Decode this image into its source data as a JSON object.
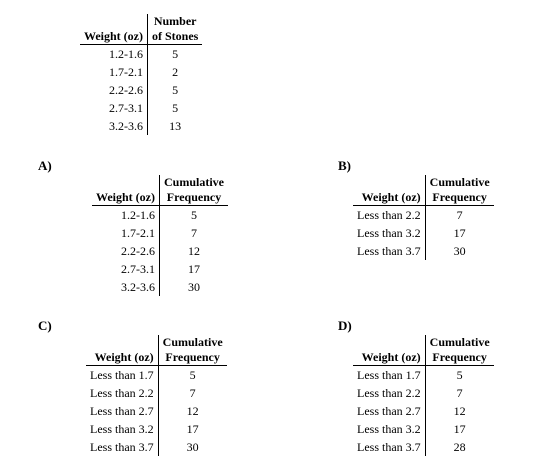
{
  "source": {
    "col1_header": "Weight (oz)",
    "col2_header_line1": "Number",
    "col2_header_line2": "of Stones",
    "rows": [
      {
        "w": "1.2-1.6",
        "v": "5"
      },
      {
        "w": "1.7-2.1",
        "v": "2"
      },
      {
        "w": "2.2-2.6",
        "v": "5"
      },
      {
        "w": "2.7-3.1",
        "v": "5"
      },
      {
        "w": "3.2-3.6",
        "v": "13"
      }
    ]
  },
  "options": [
    {
      "label": "A)",
      "col1_header": "Weight (oz)",
      "col2_header_line1": "Cumulative",
      "col2_header_line2": "Frequency",
      "rows": [
        {
          "w": "1.2-1.6",
          "v": "5"
        },
        {
          "w": "1.7-2.1",
          "v": "7"
        },
        {
          "w": "2.2-2.6",
          "v": "12"
        },
        {
          "w": "2.7-3.1",
          "v": "17"
        },
        {
          "w": "3.2-3.6",
          "v": "30"
        }
      ]
    },
    {
      "label": "B)",
      "col1_header": "Weight (oz)",
      "col2_header_line1": "Cumulative",
      "col2_header_line2": "Frequency",
      "rows": [
        {
          "w": "Less than 2.2",
          "v": "7"
        },
        {
          "w": "Less than 3.2",
          "v": "17"
        },
        {
          "w": "Less than 3.7",
          "v": "30"
        }
      ]
    },
    {
      "label": "C)",
      "col1_header": "Weight (oz)",
      "col2_header_line1": "Cumulative",
      "col2_header_line2": "Frequency",
      "rows": [
        {
          "w": "Less than 1.7",
          "v": "5"
        },
        {
          "w": "Less than 2.2",
          "v": "7"
        },
        {
          "w": "Less than 2.7",
          "v": "12"
        },
        {
          "w": "Less than 3.2",
          "v": "17"
        },
        {
          "w": "Less than 3.7",
          "v": "30"
        }
      ]
    },
    {
      "label": "D)",
      "col1_header": "Weight (oz)",
      "col2_header_line1": "Cumulative",
      "col2_header_line2": "Frequency",
      "rows": [
        {
          "w": "Less than 1.7",
          "v": "5"
        },
        {
          "w": "Less than 2.2",
          "v": "7"
        },
        {
          "w": "Less than 2.7",
          "v": "12"
        },
        {
          "w": "Less than 3.2",
          "v": "17"
        },
        {
          "w": "Less than 3.7",
          "v": "28"
        }
      ]
    }
  ]
}
